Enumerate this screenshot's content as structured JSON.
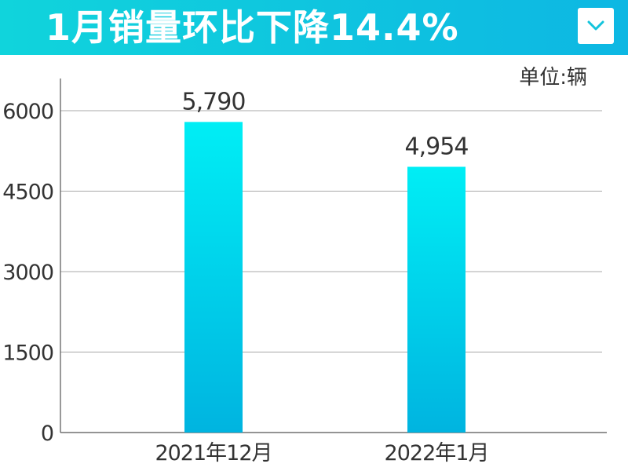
{
  "header": {
    "title": "1月销量环比下降14.4%",
    "dropdown_icon": "chevron-down-icon",
    "background_color": "#0fc5df"
  },
  "chart_data": {
    "type": "bar",
    "title": "1月销量环比下降14.4%",
    "unit": "单位:辆",
    "categories": [
      "2021年12月",
      "2022年1月"
    ],
    "values": [
      5790,
      4954
    ],
    "value_labels": [
      "5,790",
      "4,954"
    ],
    "ylim": [
      0,
      6600
    ],
    "yticks": [
      0,
      1500,
      3000,
      4500,
      6000
    ],
    "ytick_labels": [
      "0",
      "1500",
      "3000",
      "4500",
      "6000"
    ],
    "xlabel": "",
    "ylabel": "",
    "grid": true,
    "legend": "none",
    "bar_color_top": "#00eef5",
    "bar_color_bottom": "#00b4e0"
  }
}
